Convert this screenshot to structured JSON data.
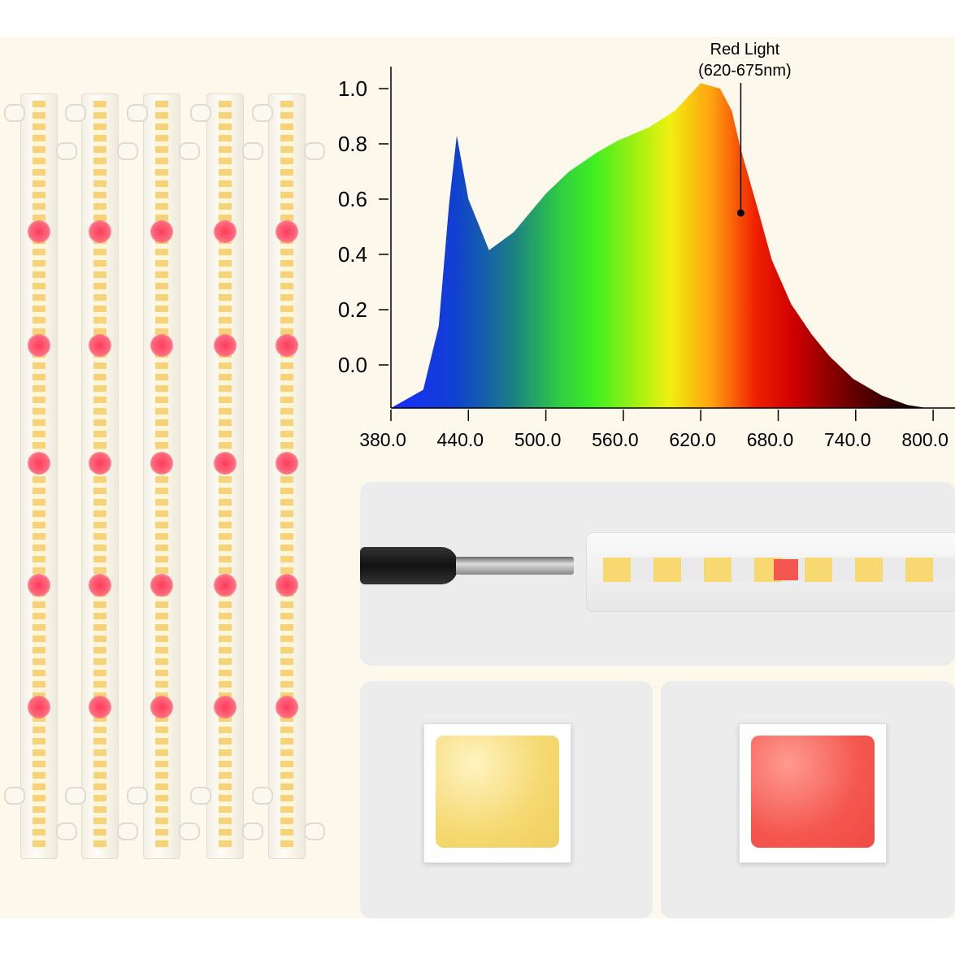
{
  "chart_data": {
    "type": "area",
    "title": "",
    "xlabel": "",
    "ylabel": "",
    "xlim": [
      380,
      810
    ],
    "ylim": [
      -0.16,
      1.1
    ],
    "x_ticks": [
      "380.0",
      "440.0",
      "500.0",
      "560.0",
      "620.0",
      "680.0",
      "740.0",
      "800.0"
    ],
    "y_ticks": [
      "1.0",
      "0.8",
      "0.6",
      "0.4",
      "0.2",
      "0.0"
    ],
    "grid": false,
    "fill": "visible-spectrum gradient (blue to red to black)",
    "series": [
      {
        "x": [
          380,
          405,
          417,
          425,
          431,
          440,
          456,
          475,
          500,
          518,
          540,
          555,
          580,
          600,
          620,
          635,
          644,
          651,
          665,
          675,
          690,
          706,
          720,
          738,
          760,
          780,
          795
        ],
        "y": [
          -0.156,
          -0.09,
          0.14,
          0.58,
          0.83,
          0.6,
          0.415,
          0.48,
          0.62,
          0.7,
          0.77,
          0.81,
          0.86,
          0.92,
          1.02,
          1.0,
          0.92,
          0.78,
          0.55,
          0.38,
          0.22,
          0.11,
          0.03,
          -0.05,
          -0.11,
          -0.145,
          -0.156
        ]
      }
    ],
    "annotations": [
      {
        "line1": "Red Light",
        "line2": "(620-675nm)",
        "x": 651,
        "y": 0.55
      }
    ]
  },
  "colors": {
    "background": "#fdf8ec",
    "panel": "#ececec",
    "warm_white_led": "#f7db7c",
    "red_led": "#f4574f"
  }
}
